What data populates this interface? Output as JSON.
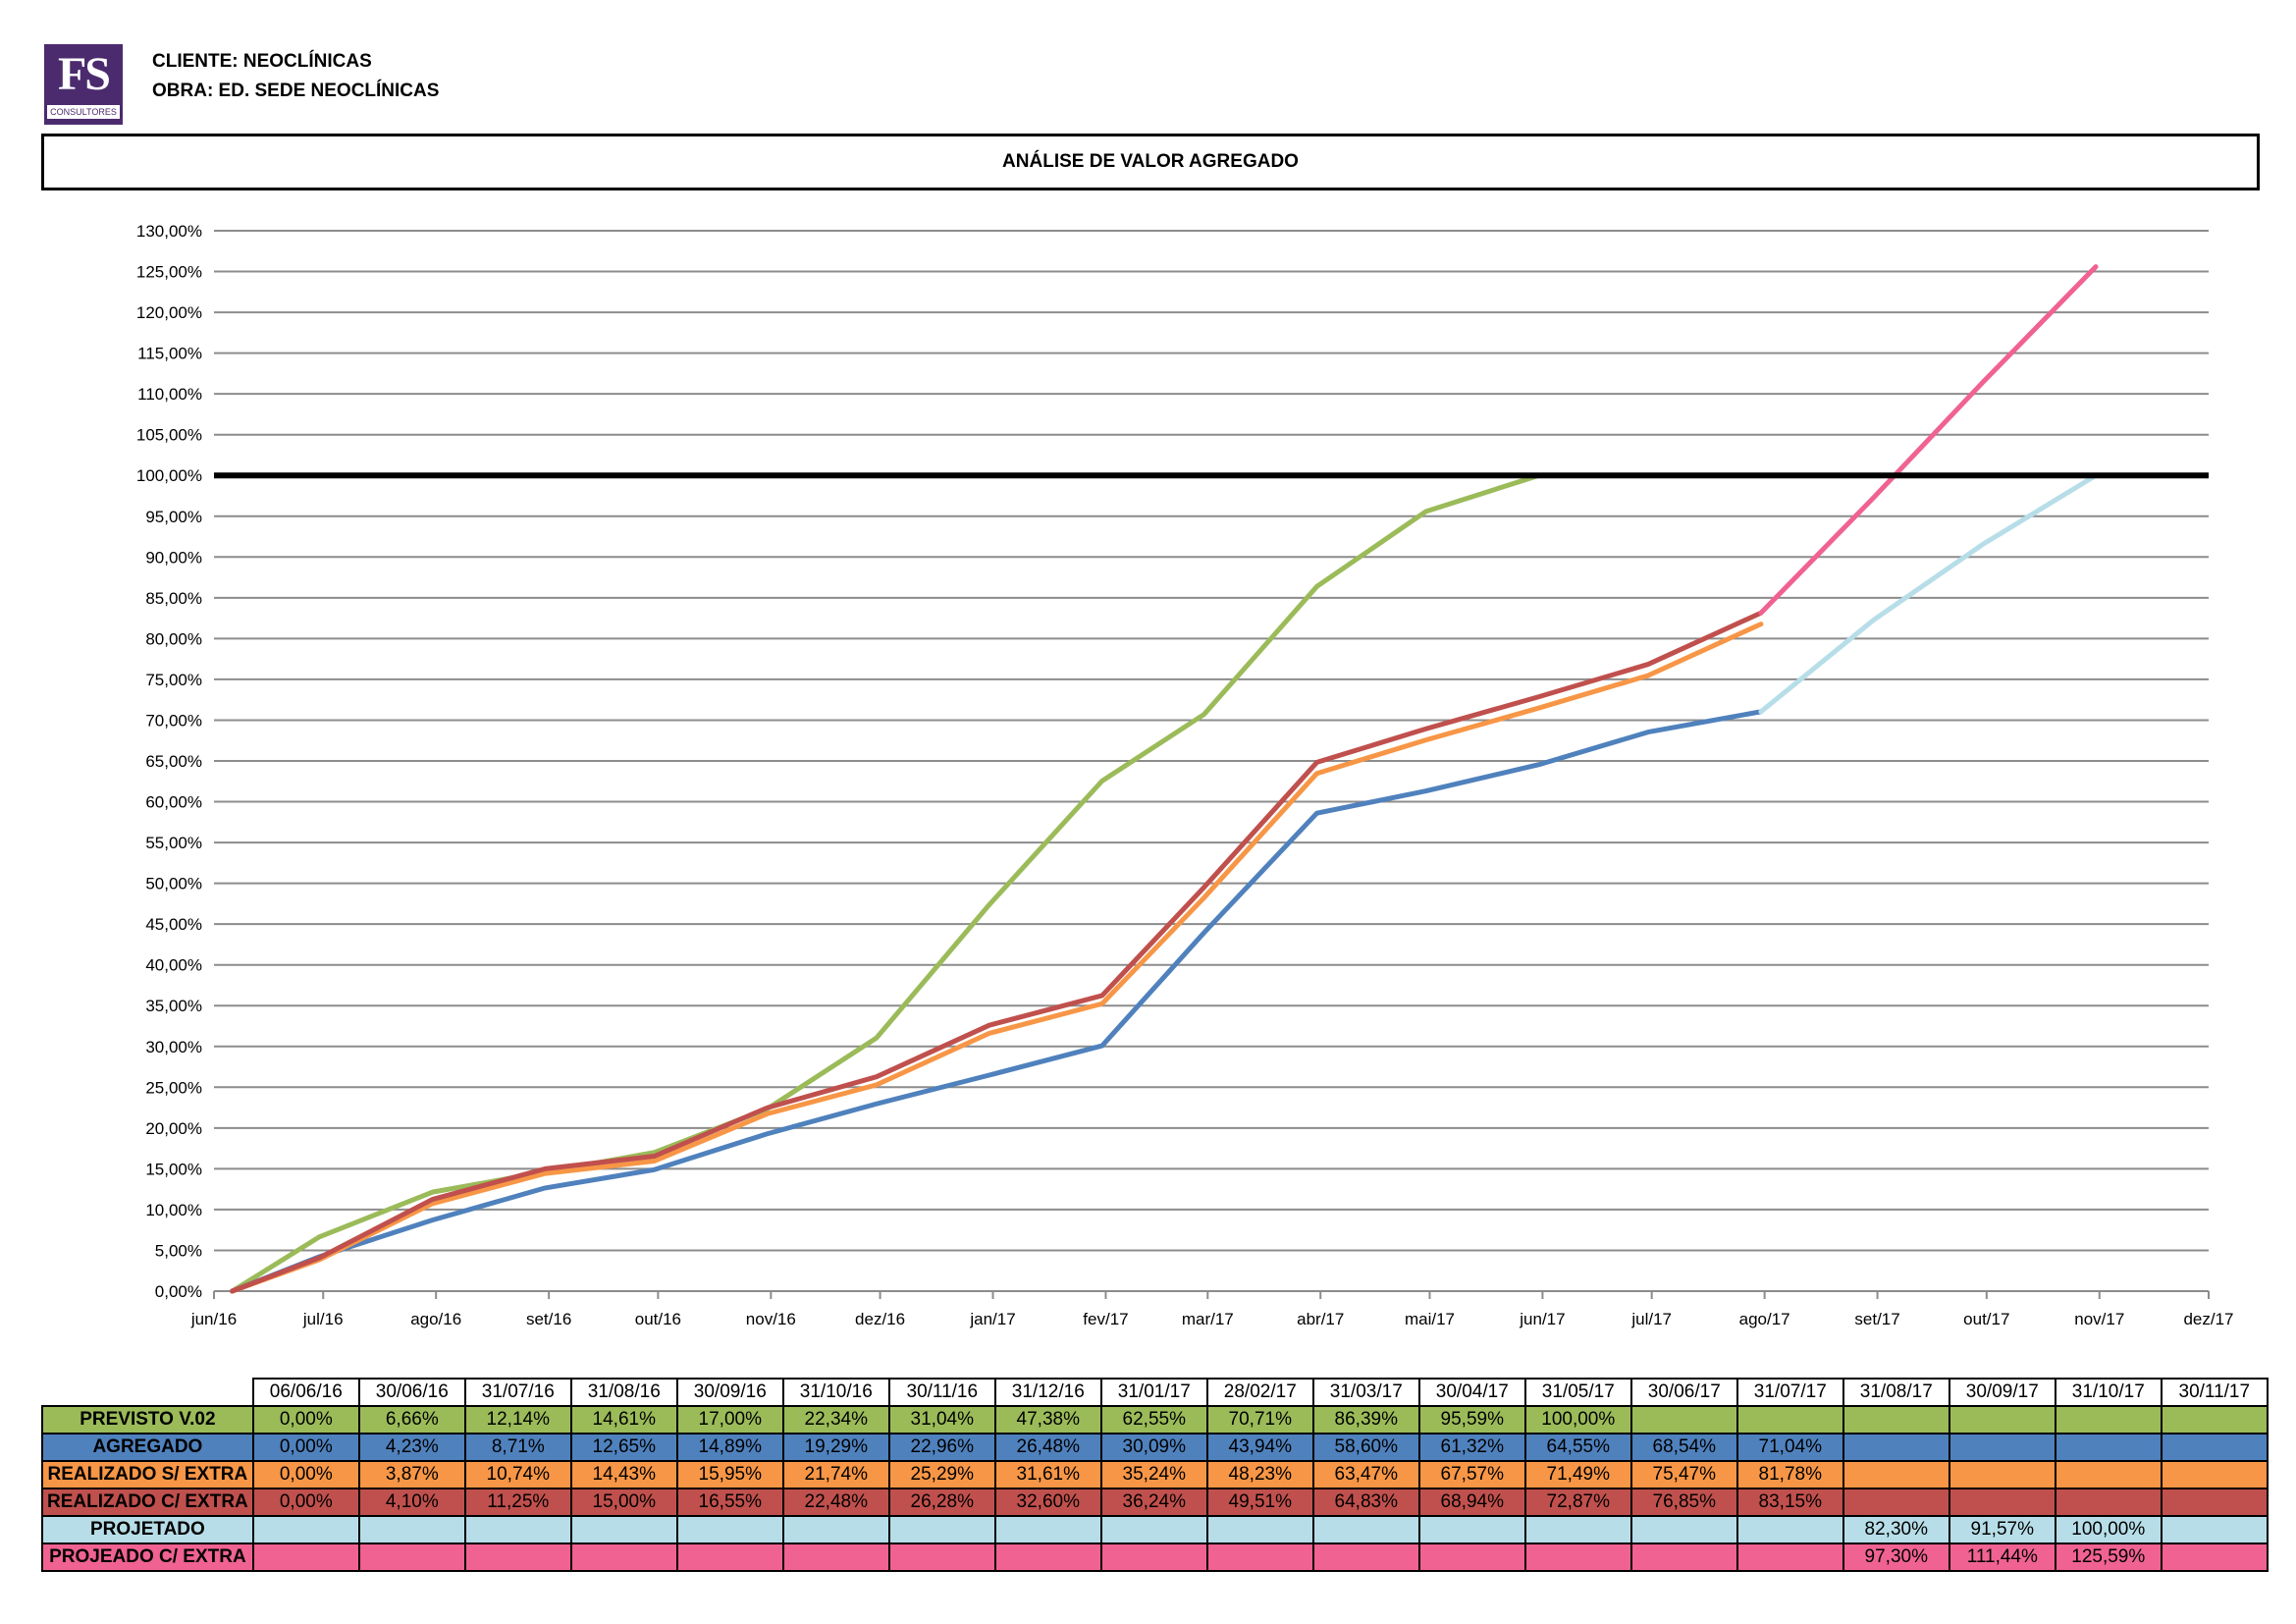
{
  "logo": {
    "mark": "FS",
    "sub": "CONSULTORES"
  },
  "header": {
    "client": "CLIENTE: NEOCLÍNICAS",
    "work": "OBRA: ED. SEDE NEOCLÍNICAS"
  },
  "title": "ANÁLISE DE VALOR AGREGADO",
  "chart_data": {
    "type": "line",
    "title": "ANÁLISE DE VALOR AGREGADO",
    "xlabel": "",
    "ylabel": "",
    "x_tick_labels": [
      "jun/16",
      "jul/16",
      "ago/16",
      "set/16",
      "out/16",
      "nov/16",
      "dez/16",
      "jan/17",
      "fev/17",
      "mar/17",
      "abr/17",
      "mai/17",
      "jun/17",
      "jul/17",
      "ago/17",
      "set/17",
      "out/17",
      "nov/17",
      "dez/17"
    ],
    "y_tick_labels": [
      "0,00%",
      "5,00%",
      "10,00%",
      "15,00%",
      "20,00%",
      "25,00%",
      "30,00%",
      "35,00%",
      "40,00%",
      "45,00%",
      "50,00%",
      "55,00%",
      "60,00%",
      "65,00%",
      "70,00%",
      "75,00%",
      "80,00%",
      "85,00%",
      "90,00%",
      "95,00%",
      "100,00%",
      "105,00%",
      "110,00%",
      "115,00%",
      "120,00%",
      "125,00%",
      "130,00%"
    ],
    "ylim": [
      0,
      130
    ],
    "xlim": [
      "2016-06-01",
      "2017-12-01"
    ],
    "grid": true,
    "reference_line": {
      "y": 100,
      "color": "#000000"
    },
    "x": [
      "2016-06-06",
      "2016-06-30",
      "2016-07-31",
      "2016-08-31",
      "2016-09-30",
      "2016-10-31",
      "2016-11-30",
      "2016-12-31",
      "2017-01-31",
      "2017-02-28",
      "2017-03-31",
      "2017-04-30",
      "2017-05-31",
      "2017-06-30",
      "2017-07-31",
      "2017-08-31",
      "2017-09-30",
      "2017-10-31",
      "2017-11-30"
    ],
    "x_labels": [
      "06/06/16",
      "30/06/16",
      "31/07/16",
      "31/08/16",
      "30/09/16",
      "31/10/16",
      "30/11/16",
      "31/12/16",
      "31/01/17",
      "28/02/17",
      "31/03/17",
      "30/04/17",
      "31/05/17",
      "30/06/17",
      "31/07/17",
      "31/08/17",
      "30/09/17",
      "31/10/17",
      "30/11/17"
    ],
    "series": [
      {
        "name": "PREVISTO V.02",
        "color": "#9bbb59",
        "values": [
          0.0,
          6.66,
          12.14,
          14.61,
          17.0,
          22.34,
          31.04,
          47.38,
          62.55,
          70.71,
          86.39,
          95.59,
          100.0,
          null,
          null,
          null,
          null,
          null,
          null
        ],
        "labels": [
          "0,00%",
          "6,66%",
          "12,14%",
          "14,61%",
          "17,00%",
          "22,34%",
          "31,04%",
          "47,38%",
          "62,55%",
          "70,71%",
          "86,39%",
          "95,59%",
          "100,00%",
          "",
          "",
          "",
          "",
          "",
          ""
        ]
      },
      {
        "name": "AGREGADO",
        "color": "#4f81bd",
        "values": [
          0.0,
          4.23,
          8.71,
          12.65,
          14.89,
          19.29,
          22.96,
          26.48,
          30.09,
          43.94,
          58.6,
          61.32,
          64.55,
          68.54,
          71.04,
          null,
          null,
          null,
          null
        ],
        "labels": [
          "0,00%",
          "4,23%",
          "8,71%",
          "12,65%",
          "14,89%",
          "19,29%",
          "22,96%",
          "26,48%",
          "30,09%",
          "43,94%",
          "58,60%",
          "61,32%",
          "64,55%",
          "68,54%",
          "71,04%",
          "",
          "",
          "",
          ""
        ]
      },
      {
        "name": "REALIZADO S/ EXTRA",
        "color": "#f79646",
        "values": [
          0.0,
          3.87,
          10.74,
          14.43,
          15.95,
          21.74,
          25.29,
          31.61,
          35.24,
          48.23,
          63.47,
          67.57,
          71.49,
          75.47,
          81.78,
          null,
          null,
          null,
          null
        ],
        "labels": [
          "0,00%",
          "3,87%",
          "10,74%",
          "14,43%",
          "15,95%",
          "21,74%",
          "25,29%",
          "31,61%",
          "35,24%",
          "48,23%",
          "63,47%",
          "67,57%",
          "71,49%",
          "75,47%",
          "81,78%",
          "",
          "",
          "",
          ""
        ]
      },
      {
        "name": "REALIZADO C/ EXTRA",
        "color": "#c0504d",
        "values": [
          0.0,
          4.1,
          11.25,
          15.0,
          16.55,
          22.48,
          26.28,
          32.6,
          36.24,
          49.51,
          64.83,
          68.94,
          72.87,
          76.85,
          83.15,
          null,
          null,
          null,
          null
        ],
        "labels": [
          "0,00%",
          "4,10%",
          "11,25%",
          "15,00%",
          "16,55%",
          "22,48%",
          "26,28%",
          "32,60%",
          "36,24%",
          "49,51%",
          "64,83%",
          "68,94%",
          "72,87%",
          "76,85%",
          "83,15%",
          "",
          "",
          "",
          ""
        ]
      },
      {
        "name": "PROJETADO",
        "color": "#b7dee8",
        "values": [
          null,
          null,
          null,
          null,
          null,
          null,
          null,
          null,
          null,
          null,
          null,
          null,
          null,
          null,
          71.04,
          82.3,
          91.57,
          100.0,
          null
        ],
        "labels": [
          "",
          "",
          "",
          "",
          "",
          "",
          "",
          "",
          "",
          "",
          "",
          "",
          "",
          "",
          "",
          "82,30%",
          "91,57%",
          "100,00%",
          ""
        ]
      },
      {
        "name": "PROJEADO C/ EXTRA",
        "color": "#f06292",
        "values": [
          null,
          null,
          null,
          null,
          null,
          null,
          null,
          null,
          null,
          null,
          null,
          null,
          null,
          null,
          83.15,
          97.3,
          111.44,
          125.59,
          null
        ],
        "labels": [
          "",
          "",
          "",
          "",
          "",
          "",
          "",
          "",
          "",
          "",
          "",
          "",
          "",
          "",
          "",
          "97,30%",
          "111,44%",
          "125,59%",
          ""
        ]
      }
    ]
  }
}
